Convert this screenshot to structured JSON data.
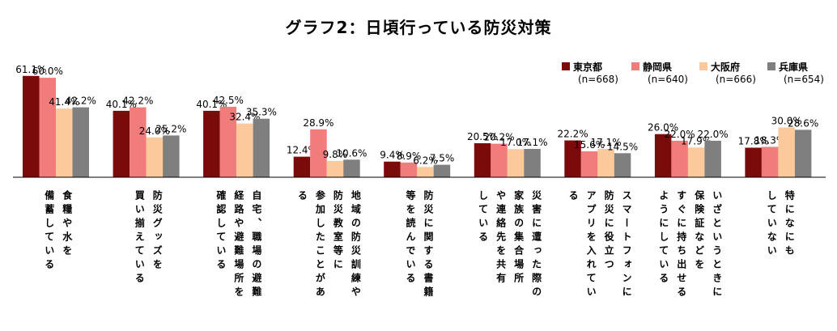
{
  "chart_data": {
    "type": "bar",
    "title": "グラフ2：日頃行っている防災対策",
    "categories": [
      "食糧や水を\n備蓄している",
      "防災グッズを\n買い揃えている",
      "自宅、職場の避難\n経路や避難場所を\n確認している",
      "地域の防災訓練や\n防災教室等に\n参加したことがあ\nる",
      "防災に関する書籍\n等を読んでいる",
      "災害に遭った際の\n家族の集合場所\nや連絡先を共有\nしている",
      "スマートフォンに\n防災に役立つ\nアプリを入れてい\nる",
      "いざというときに\n保険証などを\nすぐに持ち出せる\nようにしている",
      "特になにも\nしていない"
    ],
    "series": [
      {
        "name": "東京都",
        "n_label": "(n=668)",
        "color": "#7b0a0a",
        "values": [
          61.1,
          40.1,
          40.1,
          12.4,
          9.4,
          20.5,
          22.2,
          26.0,
          17.8
        ],
        "labels": [
          "61.1%",
          "40.1%",
          "40.1%",
          "12.4%",
          "9.4%",
          "20.5%",
          "22.2%",
          "26.0%",
          "17.8%"
        ]
      },
      {
        "name": "静岡県",
        "n_label": "(n=640)",
        "color": "#f27b7b",
        "values": [
          60.0,
          42.2,
          42.5,
          28.9,
          8.9,
          20.2,
          15.6,
          22.0,
          18.3
        ],
        "labels": [
          "60.0%",
          "42.2%",
          "42.5%",
          "28.9%",
          "8.9%",
          "20.2%",
          "15.6%",
          "22.0%",
          "18.3%"
        ]
      },
      {
        "name": "大阪府",
        "n_label": "(n=666)",
        "color": "#fbc99a",
        "values": [
          41.4,
          24.0,
          32.4,
          9.8,
          6.2,
          17.0,
          17.1,
          17.9,
          30.0
        ],
        "labels": [
          "41.4%",
          "24.0%",
          "32.4%",
          "9.8%",
          "6.2%",
          "17.0%",
          "17.1%",
          "17.9%",
          "30.0%"
        ]
      },
      {
        "name": "兵庫県",
        "n_label": "(n=654)",
        "color": "#7f7f7f",
        "values": [
          42.2,
          25.2,
          35.3,
          10.6,
          7.5,
          17.1,
          14.5,
          22.0,
          28.6
        ],
        "labels": [
          "42.2%",
          "25.2%",
          "35.3%",
          "10.6%",
          "7.5%",
          "17.1%",
          "14.5%",
          "22.0%",
          "28.6%"
        ]
      }
    ],
    "ylim": [
      0,
      62
    ],
    "grid": false,
    "legend": "top-right"
  }
}
